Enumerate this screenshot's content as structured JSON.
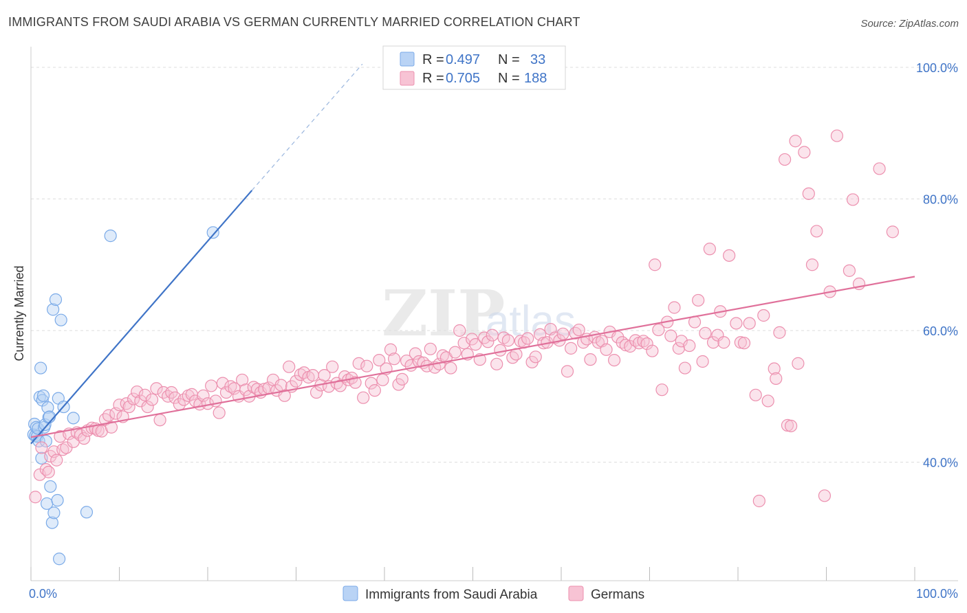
{
  "header": {
    "title": "IMMIGRANTS FROM SAUDI ARABIA VS GERMAN CURRENTLY MARRIED CORRELATION CHART",
    "source": "Source: ZipAtlas.com"
  },
  "watermark": {
    "part1": "ZIP",
    "part2": "atlas"
  },
  "chart_data": {
    "type": "scatter",
    "title": "IMMIGRANTS FROM SAUDI ARABIA VS GERMAN CURRENTLY MARRIED CORRELATION CHART",
    "xlabel": "",
    "ylabel": "Currently Married",
    "xlim": [
      0,
      100
    ],
    "ylim": [
      20,
      102
    ],
    "x_tick_labels": [
      "0.0%",
      "100.0%"
    ],
    "y_ticks": [
      40,
      60,
      80,
      100
    ],
    "y_tick_labels": [
      "40.0%",
      "60.0%",
      "80.0%",
      "100.0%"
    ],
    "grid": true,
    "legend_position": "top-center",
    "stats": [
      {
        "r_label": "R =",
        "r": "0.497",
        "n_label": "N =",
        "n": "33"
      },
      {
        "r_label": "R =",
        "r": "0.705",
        "n_label": "N =",
        "n": "188"
      }
    ],
    "series": [
      {
        "name": "Immigrants from Saudi Arabia",
        "color": "#7aaae8",
        "fill": "#b9d3f5",
        "trend": {
          "x": [
            0,
            25
          ],
          "y": [
            42.8,
            81.3
          ],
          "dash_to": [
            37.5,
            100.5
          ]
        },
        "points": [
          [
            0.3,
            44.2
          ],
          [
            0.4,
            45.8
          ],
          [
            0.5,
            44.0
          ],
          [
            0.6,
            45.3
          ],
          [
            0.7,
            43.9
          ],
          [
            0.8,
            45.1
          ],
          [
            0.9,
            43.2
          ],
          [
            1.0,
            49.9
          ],
          [
            1.1,
            54.3
          ],
          [
            1.2,
            40.6
          ],
          [
            1.3,
            49.4
          ],
          [
            1.4,
            50.1
          ],
          [
            1.5,
            45.3
          ],
          [
            1.6,
            45.7
          ],
          [
            1.7,
            43.2
          ],
          [
            1.8,
            33.7
          ],
          [
            1.9,
            48.3
          ],
          [
            2.0,
            46.8
          ],
          [
            2.1,
            46.9
          ],
          [
            2.2,
            36.3
          ],
          [
            2.4,
            30.8
          ],
          [
            2.5,
            63.2
          ],
          [
            2.6,
            32.3
          ],
          [
            2.8,
            64.7
          ],
          [
            3.0,
            34.2
          ],
          [
            3.1,
            49.7
          ],
          [
            3.2,
            25.3
          ],
          [
            3.4,
            61.6
          ],
          [
            3.7,
            48.4
          ],
          [
            4.8,
            46.7
          ],
          [
            6.3,
            32.4
          ],
          [
            9.0,
            74.4
          ],
          [
            20.6,
            74.9
          ]
        ]
      },
      {
        "name": "Germans",
        "color": "#ec8fae",
        "fill": "#f7c3d4",
        "trend": {
          "x": [
            0,
            100
          ],
          "y": [
            43.8,
            68.2
          ]
        },
        "points": [
          [
            0.5,
            34.7
          ],
          [
            1.0,
            38.1
          ],
          [
            1.2,
            42.2
          ],
          [
            1.7,
            38.9
          ],
          [
            2.0,
            38.5
          ],
          [
            2.2,
            40.9
          ],
          [
            2.6,
            41.6
          ],
          [
            2.9,
            40.3
          ],
          [
            3.3,
            43.9
          ],
          [
            3.6,
            41.9
          ],
          [
            4.0,
            42.2
          ],
          [
            4.3,
            44.3
          ],
          [
            4.8,
            43.1
          ],
          [
            5.2,
            44.5
          ],
          [
            5.6,
            44.1
          ],
          [
            6.0,
            43.6
          ],
          [
            6.4,
            44.8
          ],
          [
            6.9,
            45.2
          ],
          [
            7.3,
            45.1
          ],
          [
            7.6,
            44.8
          ],
          [
            8.0,
            44.7
          ],
          [
            8.4,
            46.5
          ],
          [
            8.8,
            47.1
          ],
          [
            9.1,
            45.3
          ],
          [
            9.6,
            47.4
          ],
          [
            10.0,
            48.7
          ],
          [
            10.4,
            46.9
          ],
          [
            10.8,
            48.9
          ],
          [
            11.1,
            48.4
          ],
          [
            11.6,
            49.6
          ],
          [
            12.0,
            50.7
          ],
          [
            12.4,
            49.3
          ],
          [
            12.9,
            50.2
          ],
          [
            13.2,
            48.4
          ],
          [
            13.7,
            49.5
          ],
          [
            14.2,
            51.2
          ],
          [
            14.6,
            46.4
          ],
          [
            15.0,
            50.6
          ],
          [
            15.5,
            50.0
          ],
          [
            15.9,
            50.6
          ],
          [
            16.3,
            49.8
          ],
          [
            16.8,
            48.8
          ],
          [
            17.3,
            49.5
          ],
          [
            17.8,
            50.1
          ],
          [
            18.2,
            50.3
          ],
          [
            18.6,
            49.3
          ],
          [
            19.1,
            48.8
          ],
          [
            19.5,
            50.1
          ],
          [
            20.0,
            48.9
          ],
          [
            20.4,
            51.6
          ],
          [
            20.9,
            49.3
          ],
          [
            21.3,
            47.5
          ],
          [
            21.7,
            52.0
          ],
          [
            22.1,
            50.6
          ],
          [
            22.6,
            51.5
          ],
          [
            23.0,
            51.2
          ],
          [
            23.5,
            50.0
          ],
          [
            23.9,
            52.5
          ],
          [
            24.3,
            51.0
          ],
          [
            24.7,
            50.0
          ],
          [
            25.2,
            51.4
          ],
          [
            25.6,
            51.1
          ],
          [
            26.0,
            50.6
          ],
          [
            26.4,
            51.1
          ],
          [
            26.9,
            51.3
          ],
          [
            27.4,
            52.5
          ],
          [
            27.8,
            50.9
          ],
          [
            28.3,
            51.7
          ],
          [
            28.7,
            50.1
          ],
          [
            29.2,
            54.5
          ],
          [
            29.5,
            51.5
          ],
          [
            30.0,
            52.3
          ],
          [
            30.5,
            53.3
          ],
          [
            30.9,
            53.6
          ],
          [
            31.4,
            52.9
          ],
          [
            31.9,
            53.2
          ],
          [
            32.3,
            50.6
          ],
          [
            32.8,
            51.7
          ],
          [
            33.2,
            53.2
          ],
          [
            33.7,
            51.5
          ],
          [
            34.1,
            54.5
          ],
          [
            34.6,
            52.0
          ],
          [
            35.0,
            51.6
          ],
          [
            35.5,
            53.0
          ],
          [
            35.9,
            52.5
          ],
          [
            36.3,
            52.8
          ],
          [
            36.7,
            52.1
          ],
          [
            37.1,
            55.0
          ],
          [
            37.6,
            49.8
          ],
          [
            38.0,
            54.6
          ],
          [
            38.5,
            52.0
          ],
          [
            38.9,
            50.9
          ],
          [
            39.4,
            55.5
          ],
          [
            39.8,
            52.5
          ],
          [
            40.2,
            54.2
          ],
          [
            40.7,
            57.1
          ],
          [
            41.1,
            55.7
          ],
          [
            41.6,
            51.8
          ],
          [
            42.0,
            52.6
          ],
          [
            42.5,
            55.4
          ],
          [
            43.0,
            54.7
          ],
          [
            43.5,
            56.5
          ],
          [
            43.9,
            55.3
          ],
          [
            44.4,
            55.1
          ],
          [
            44.8,
            54.6
          ],
          [
            45.2,
            57.2
          ],
          [
            45.7,
            54.4
          ],
          [
            46.2,
            54.9
          ],
          [
            46.6,
            56.2
          ],
          [
            47.0,
            55.9
          ],
          [
            47.5,
            54.3
          ],
          [
            48.0,
            56.7
          ],
          [
            48.5,
            60.0
          ],
          [
            49.0,
            58.1
          ],
          [
            49.4,
            56.4
          ],
          [
            49.9,
            58.7
          ],
          [
            50.3,
            57.9
          ],
          [
            50.8,
            55.6
          ],
          [
            51.3,
            58.9
          ],
          [
            51.7,
            58.3
          ],
          [
            52.2,
            59.3
          ],
          [
            52.7,
            54.9
          ],
          [
            53.1,
            57.0
          ],
          [
            53.5,
            58.9
          ],
          [
            54.0,
            58.5
          ],
          [
            54.5,
            55.9
          ],
          [
            54.9,
            56.4
          ],
          [
            55.4,
            58.4
          ],
          [
            55.8,
            58.2
          ],
          [
            56.2,
            58.8
          ],
          [
            56.7,
            55.2
          ],
          [
            57.1,
            56.0
          ],
          [
            57.6,
            59.4
          ],
          [
            58.0,
            58.1
          ],
          [
            58.4,
            58.2
          ],
          [
            58.8,
            60.2
          ],
          [
            59.3,
            58.9
          ],
          [
            59.8,
            58.5
          ],
          [
            60.2,
            59.5
          ],
          [
            60.7,
            53.8
          ],
          [
            61.1,
            57.3
          ],
          [
            61.6,
            59.6
          ],
          [
            62.0,
            60.1
          ],
          [
            62.5,
            58.2
          ],
          [
            62.9,
            58.7
          ],
          [
            63.3,
            55.6
          ],
          [
            63.8,
            59.0
          ],
          [
            64.2,
            58.2
          ],
          [
            64.6,
            58.4
          ],
          [
            65.1,
            57.1
          ],
          [
            65.5,
            59.8
          ],
          [
            66.0,
            55.5
          ],
          [
            66.4,
            59.0
          ],
          [
            66.9,
            58.2
          ],
          [
            67.3,
            57.8
          ],
          [
            67.8,
            57.6
          ],
          [
            68.4,
            58.5
          ],
          [
            68.8,
            58.1
          ],
          [
            69.3,
            58.4
          ],
          [
            69.7,
            58.0
          ],
          [
            70.3,
            56.9
          ],
          [
            70.6,
            70.0
          ],
          [
            71.0,
            60.1
          ],
          [
            71.4,
            51.0
          ],
          [
            72.0,
            61.3
          ],
          [
            72.4,
            59.2
          ],
          [
            72.8,
            63.5
          ],
          [
            73.3,
            57.3
          ],
          [
            73.6,
            58.4
          ],
          [
            74.0,
            54.3
          ],
          [
            74.5,
            57.7
          ],
          [
            75.1,
            61.3
          ],
          [
            75.5,
            64.6
          ],
          [
            76.0,
            55.3
          ],
          [
            76.3,
            59.6
          ],
          [
            76.8,
            72.4
          ],
          [
            77.2,
            58.2
          ],
          [
            77.7,
            59.3
          ],
          [
            78.0,
            62.9
          ],
          [
            78.4,
            58.2
          ],
          [
            79.0,
            71.4
          ],
          [
            79.8,
            61.1
          ],
          [
            80.3,
            58.2
          ],
          [
            80.7,
            58.1
          ],
          [
            81.3,
            61.1
          ],
          [
            82.0,
            50.2
          ],
          [
            82.4,
            34.1
          ],
          [
            82.9,
            62.3
          ],
          [
            83.4,
            49.3
          ],
          [
            84.1,
            54.2
          ],
          [
            84.3,
            52.7
          ],
          [
            84.7,
            59.7
          ],
          [
            85.3,
            86.0
          ],
          [
            85.6,
            45.6
          ],
          [
            86.0,
            45.5
          ],
          [
            86.5,
            88.8
          ],
          [
            86.8,
            55.0
          ],
          [
            87.5,
            87.1
          ],
          [
            88.0,
            80.8
          ],
          [
            88.4,
            70.0
          ],
          [
            88.9,
            75.1
          ],
          [
            89.8,
            34.9
          ],
          [
            90.4,
            65.9
          ],
          [
            91.2,
            89.6
          ],
          [
            92.6,
            69.1
          ],
          [
            93.0,
            79.9
          ],
          [
            93.7,
            67.1
          ],
          [
            96.0,
            84.6
          ],
          [
            97.5,
            75.0
          ]
        ]
      }
    ]
  }
}
